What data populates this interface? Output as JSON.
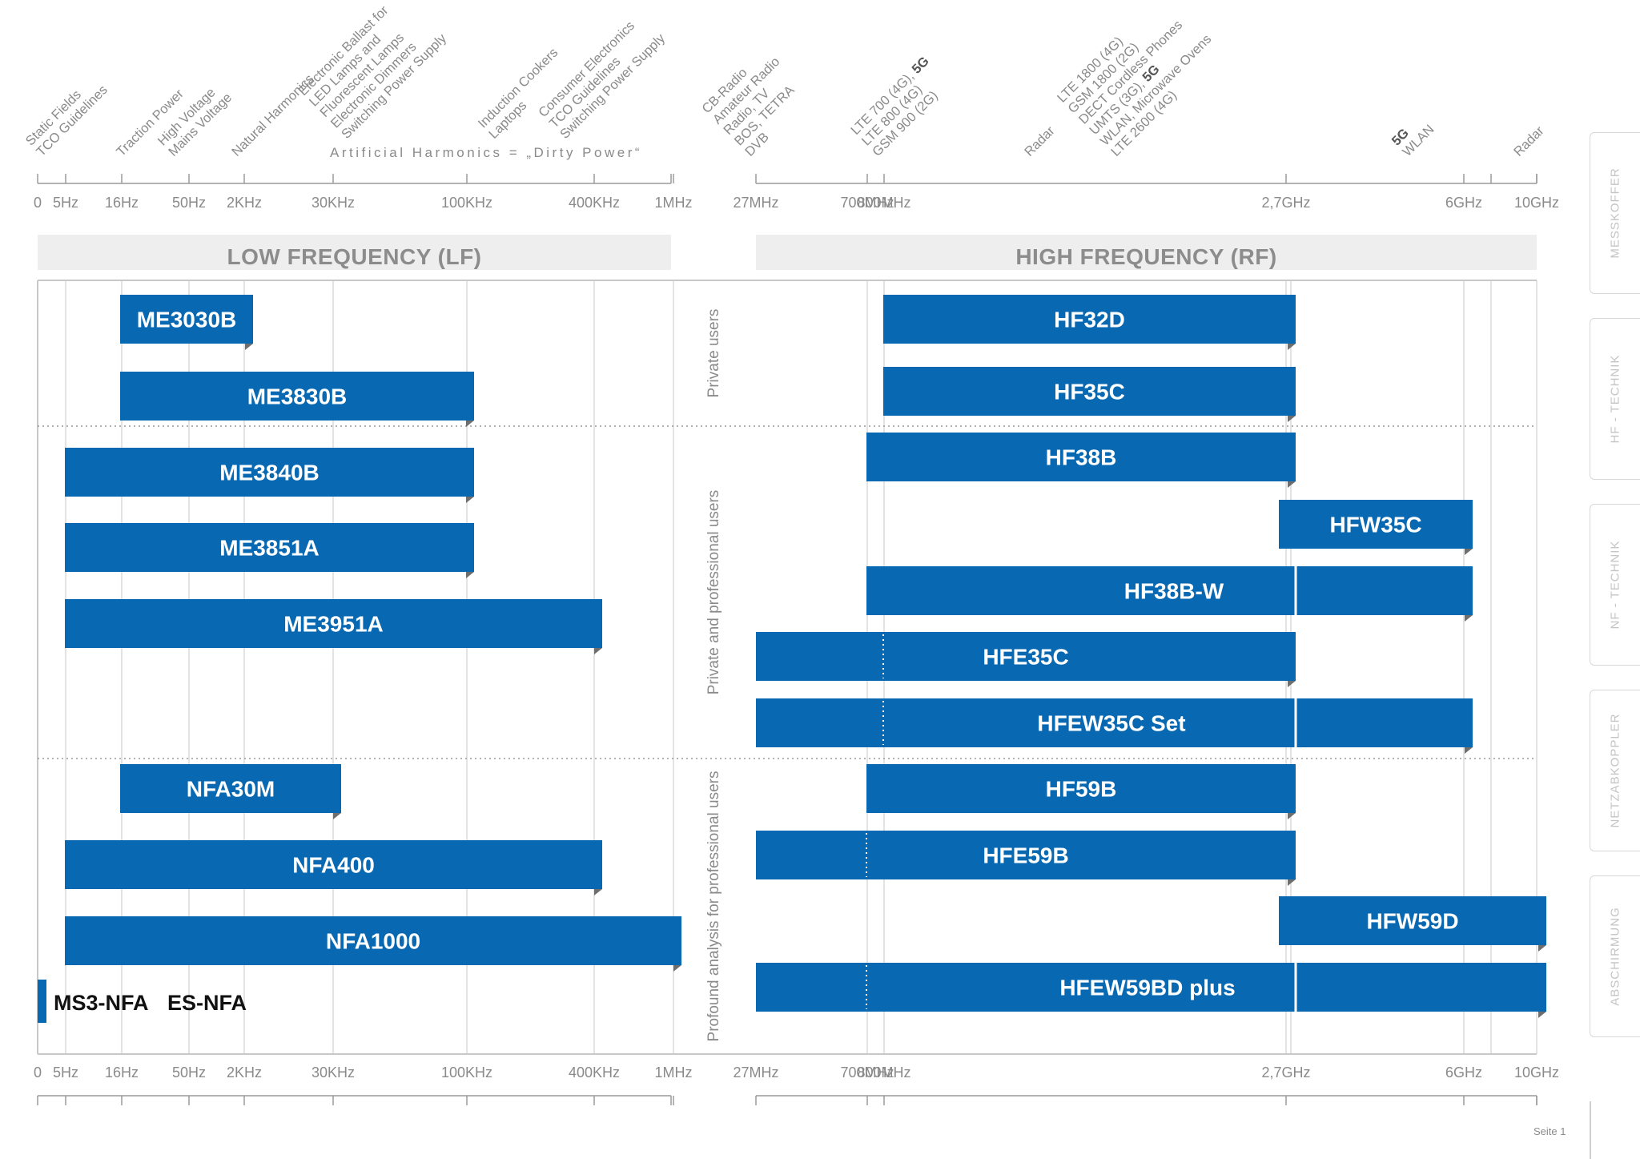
{
  "chart_data": {
    "type": "bar",
    "subtype": "horizontal-range (gantt style) on two categorical frequency axes",
    "title": "",
    "sections": [
      {
        "key": "lf",
        "title": "LOW FREQUENCY (LF)"
      },
      {
        "key": "rf",
        "title": "HIGH FREQUENCY (RF)"
      }
    ],
    "axes": {
      "lf": {
        "ticks": [
          "0",
          "5Hz",
          "16Hz",
          "50Hz",
          "2KHz",
          "30KHz",
          "100KHz",
          "400KHz",
          "1MHz"
        ]
      },
      "rf": {
        "ticks": [
          "27MHz",
          "700MHz",
          "800MHz",
          "2,7GHz",
          "6GHz",
          "10GHz"
        ]
      }
    },
    "application_labels": {
      "lf": [
        {
          "tick": "5Hz",
          "lines": [
            "Static Fields",
            "TCO Guidelines"
          ]
        },
        {
          "tick": "16Hz",
          "lines": [
            "Traction Power"
          ]
        },
        {
          "tick": "50Hz",
          "lines": [
            "High Voltage",
            "Mains Voltage"
          ]
        },
        {
          "tick": "2KHz",
          "lines": [
            "Natural Harmonics"
          ]
        },
        {
          "tick": "30KHz",
          "lines": [
            "Electronic Ballast for",
            "LED Lamps and",
            "Fluorescent Lamps",
            "Electronic Dimmers",
            "Switching Power Supply"
          ]
        },
        {
          "tick": "100KHz",
          "lines": [
            "Induction Cookers",
            "Laptops"
          ]
        },
        {
          "tick": "400KHz",
          "lines": [
            "Consumer Electronics",
            "TCO Guidelines",
            "Switching Power Supply"
          ]
        }
      ],
      "rf": [
        {
          "tick": "27MHz",
          "lines": [
            "CB-Radio",
            "Amateur Radio",
            "Radio, TV",
            "BOS, TETRA",
            "DVB"
          ]
        },
        {
          "tick": "700MHz",
          "lines": [
            "LTE 700 (4G), 5G",
            "LTE 800 (4G)",
            "GSM 900 (2G)"
          ],
          "bold_word": "5G"
        },
        {
          "tick": "radar-1",
          "lines": [
            "Radar"
          ]
        },
        {
          "tick": "2,7GHz",
          "lines": [
            "LTE 1800 (4G)",
            "GSM 1800 (2G)",
            "DECT Cordless Phones",
            "UMTS (3G), 5G",
            "WLAN, Microwave Ovens",
            "LTE 2600 (4G)"
          ],
          "bold_word": "5G"
        },
        {
          "tick": "6GHz",
          "lines": [
            "5G",
            "WLAN"
          ],
          "bold_line": "5G"
        },
        {
          "tick": "10GHz",
          "lines": [
            "Radar"
          ]
        }
      ],
      "artificial_harmonics": "Artificial Harmonics  =  „Dirty Power“"
    },
    "groups": [
      {
        "name": "Private users"
      },
      {
        "name": "Private and professional users"
      },
      {
        "name": "Profound analysis for professional users"
      }
    ],
    "series": [
      {
        "name": "ME3030B",
        "section": "lf",
        "group": 0,
        "from": "16Hz",
        "to": "2KHz"
      },
      {
        "name": "ME3830B",
        "section": "lf",
        "group": 0,
        "from": "16Hz",
        "to": "100KHz"
      },
      {
        "name": "ME3840B",
        "section": "lf",
        "group": 1,
        "from": "5Hz",
        "to": "100KHz"
      },
      {
        "name": "ME3851A",
        "section": "lf",
        "group": 1,
        "from": "5Hz",
        "to": "100KHz"
      },
      {
        "name": "ME3951A",
        "section": "lf",
        "group": 1,
        "from": "5Hz",
        "to": "400KHz"
      },
      {
        "name": "NFA30M",
        "section": "lf",
        "group": 2,
        "from": "16Hz",
        "to": "30KHz"
      },
      {
        "name": "NFA400",
        "section": "lf",
        "group": 2,
        "from": "5Hz",
        "to": "400KHz"
      },
      {
        "name": "NFA1000",
        "section": "lf",
        "group": 2,
        "from": "5Hz",
        "to": "1MHz"
      },
      {
        "name": "HF32D",
        "section": "rf",
        "group": 0,
        "from": "800MHz",
        "to": "2,7GHz"
      },
      {
        "name": "HF35C",
        "section": "rf",
        "group": 0,
        "from": "800MHz",
        "to": "2,7GHz"
      },
      {
        "name": "HF38B",
        "section": "rf",
        "group": 1,
        "from": "700MHz",
        "to": "2,7GHz"
      },
      {
        "name": "HFW35C",
        "section": "rf",
        "group": 1,
        "from": "2,7GHz",
        "to": "6GHz"
      },
      {
        "name": "HF38B-W",
        "section": "rf",
        "group": 1,
        "from": "700MHz",
        "to": "6GHz"
      },
      {
        "name": "HFE35C",
        "section": "rf",
        "group": 1,
        "from": "27MHz",
        "to": "2,7GHz"
      },
      {
        "name": "HFEW35C Set",
        "section": "rf",
        "group": 1,
        "from": "27MHz",
        "to": "6GHz"
      },
      {
        "name": "HF59B",
        "section": "rf",
        "group": 2,
        "from": "700MHz",
        "to": "2,7GHz"
      },
      {
        "name": "HFE59B",
        "section": "rf",
        "group": 2,
        "from": "27MHz",
        "to": "2,7GHz"
      },
      {
        "name": "HFW59D",
        "section": "rf",
        "group": 2,
        "from": "2,7GHz",
        "to": "10GHz"
      },
      {
        "name": "HFEW59BD plus",
        "section": "rf",
        "group": 2,
        "from": "27MHz",
        "to": "10GHz"
      }
    ],
    "extra_items": [
      "MS3-NFA",
      "ES-NFA"
    ],
    "colors": {
      "bar": "#0868b2",
      "grid": "#d4d4d4",
      "text": "#8a8a8a",
      "band": "#eeeeee"
    },
    "grid": true,
    "legend": "none"
  },
  "side_tabs": [
    "MESSKOFFER",
    "HF - TECHNIK",
    "NF - TECHNIK",
    "NETZABKOPPLER",
    "ABSCHIRMUNG"
  ],
  "footer": {
    "page": "Seite 1"
  }
}
